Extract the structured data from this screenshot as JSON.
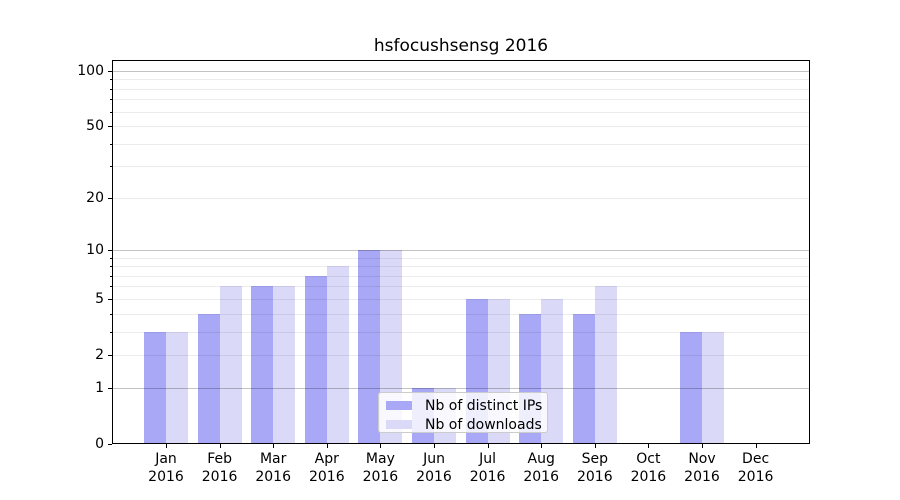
{
  "chart_data": {
    "type": "bar",
    "title": "hsfocushsensg 2016",
    "categories": [
      "Jan",
      "Feb",
      "Mar",
      "Apr",
      "May",
      "Jun",
      "Jul",
      "Aug",
      "Sep",
      "Oct",
      "Nov",
      "Dec"
    ],
    "category_year": "2016",
    "series": [
      {
        "name": "Nb of distinct IPs",
        "color": "#a8a8f6",
        "values": [
          3,
          4,
          6,
          7,
          10,
          1,
          5,
          4,
          4,
          0,
          3,
          0
        ]
      },
      {
        "name": "Nb of downloads",
        "color": "#dadaf8",
        "values": [
          3,
          6,
          6,
          8,
          10,
          1,
          5,
          5,
          6,
          0,
          3,
          0
        ]
      }
    ],
    "xlabel": "",
    "ylabel": "",
    "yscale": "log1p",
    "ylim": [
      0,
      115
    ],
    "ytick_labels": [
      0,
      1,
      2,
      5,
      10,
      20,
      50,
      100
    ],
    "major_gridlines": [
      1,
      10,
      100
    ],
    "minor_gridlines": [
      2,
      3,
      4,
      5,
      6,
      7,
      8,
      9,
      20,
      30,
      40,
      50,
      60,
      70,
      80,
      90
    ],
    "grid": "on",
    "legend_position": "lower center"
  },
  "colors": {
    "bar_distinct_ips": "#a8a8f6",
    "bar_downloads": "#dadaf8",
    "axis": "#000000",
    "legend_border": "#cccccc"
  }
}
